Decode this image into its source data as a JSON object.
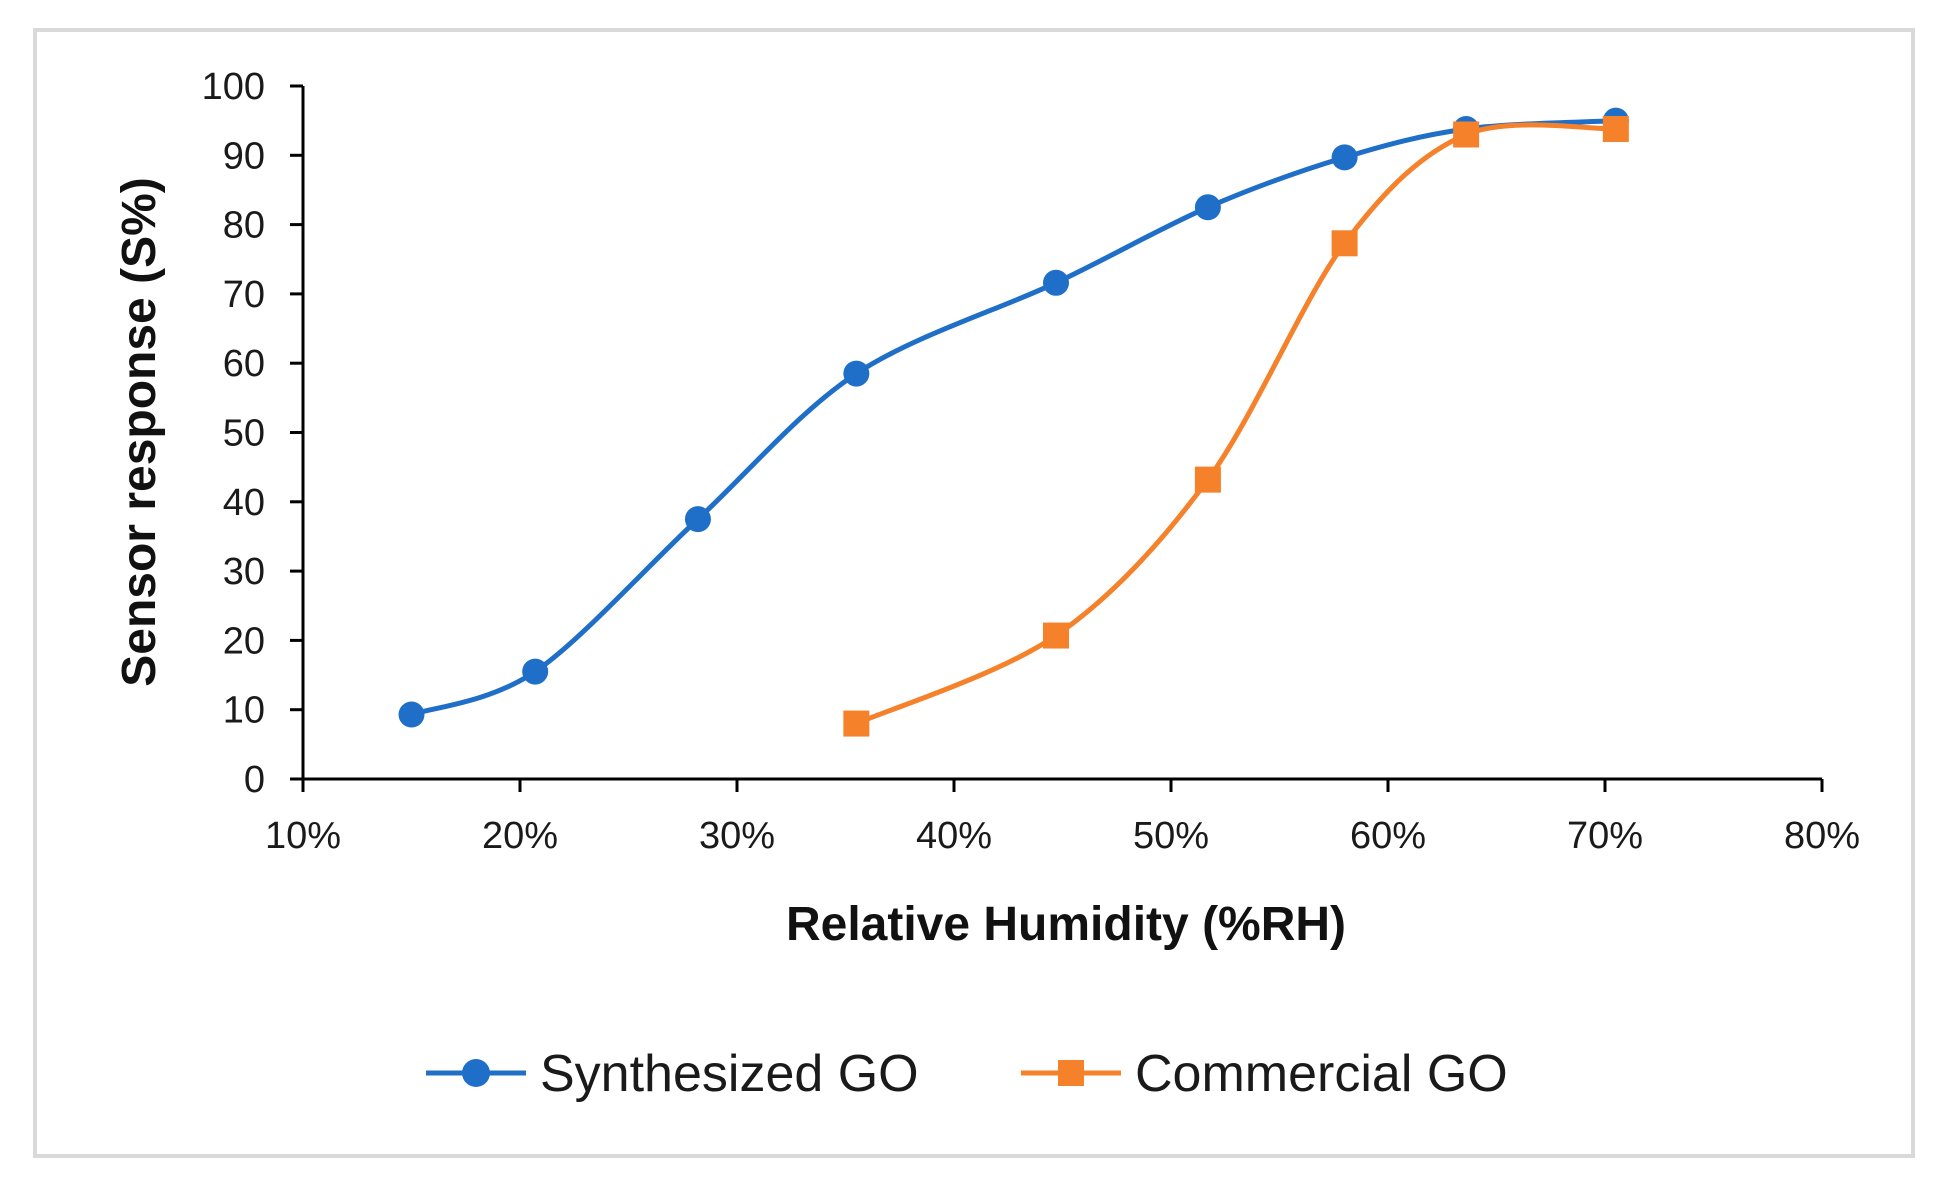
{
  "chart_data": {
    "type": "line",
    "title": "",
    "xlabel": "Relative Humidity (%RH)",
    "ylabel": "Sensor response (S%)",
    "xlim": [
      10,
      80
    ],
    "ylim": [
      0,
      100
    ],
    "x_ticks": [
      10,
      20,
      30,
      40,
      50,
      60,
      70,
      80
    ],
    "x_tick_labels": [
      "10%",
      "20%",
      "30%",
      "40%",
      "50%",
      "60%",
      "70%",
      "80%"
    ],
    "y_ticks": [
      0,
      10,
      20,
      30,
      40,
      50,
      60,
      70,
      80,
      90,
      100
    ],
    "y_tick_labels": [
      "0",
      "10",
      "20",
      "30",
      "40",
      "50",
      "60",
      "70",
      "80",
      "90",
      "100"
    ],
    "grid": false,
    "legend_position": "bottom",
    "smooth": true,
    "series": [
      {
        "name": "Synthesized GO",
        "color": "#1f6fc8",
        "marker": "circle",
        "x": [
          15,
          20.7,
          28.2,
          35.5,
          44.7,
          51.7,
          58,
          63.6,
          70.5
        ],
        "y": [
          9.3,
          15.5,
          37.5,
          58.5,
          71.6,
          82.5,
          89.7,
          93.8,
          95
        ]
      },
      {
        "name": "Commercial GO",
        "color": "#f5812b",
        "marker": "square",
        "x": [
          35.5,
          44.7,
          51.7,
          58,
          63.6,
          70.5
        ],
        "y": [
          8,
          20.7,
          43.2,
          77.3,
          93,
          93.8
        ]
      }
    ]
  }
}
